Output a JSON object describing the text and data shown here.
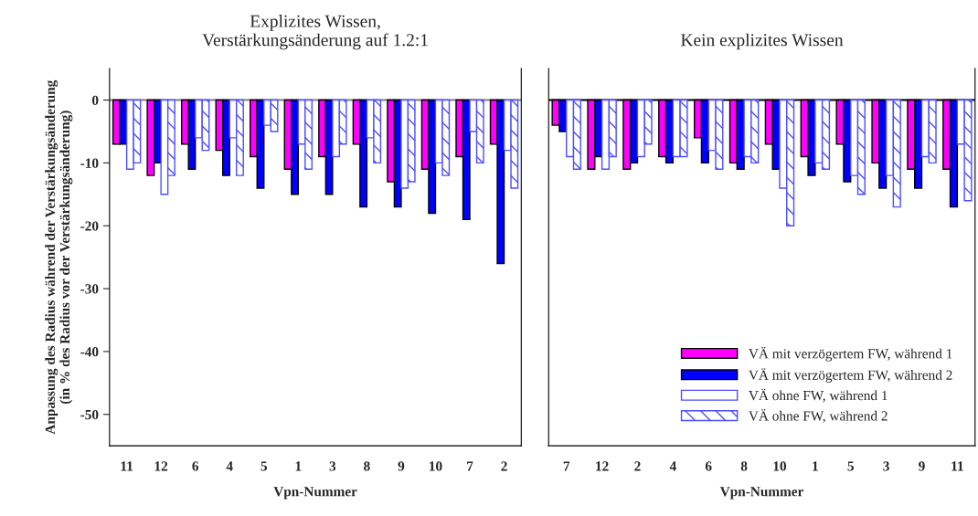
{
  "chart_data": [
    {
      "type": "bar",
      "title": "Explizites Wissen,\nVerstärkungsänderung auf 1.2:1",
      "xlabel": "Vpn-Nummer",
      "ylabel": "Anpassung des Radius während der Verstärkungsänderung\n(in % des Radius vor der Verstärkungsänderung)",
      "categories": [
        "11",
        "12",
        "6",
        "4",
        "5",
        "1",
        "3",
        "8",
        "9",
        "10",
        "7",
        "2"
      ],
      "ylim": [
        -55,
        5
      ],
      "yticks": [
        0,
        -10,
        -20,
        -30,
        -40,
        -50
      ],
      "ref_lines": [
        {
          "axis": "y",
          "value": 0,
          "color": "#808080"
        }
      ],
      "series": [
        {
          "color": "#ff00ff",
          "values": [
            -7,
            -12,
            -7,
            -8,
            -9,
            -11,
            -9,
            -7,
            -13,
            -11,
            -9,
            -7
          ]
        },
        {
          "color": "#0000ff",
          "values": [
            -7,
            -10,
            -11,
            -12,
            -14,
            -15,
            -15,
            -17,
            -17,
            -18,
            -19,
            -26
          ]
        },
        {
          "color": "#4d4dff",
          "values": [
            -11,
            -15,
            -6,
            -6,
            -4,
            -7,
            -9,
            -6,
            -14,
            -10,
            -5,
            -8
          ]
        },
        {
          "color": "#4d4dff",
          "values": [
            -10,
            -12,
            -8,
            -12,
            -5,
            -11,
            -7,
            -10,
            -13,
            -12,
            -10,
            -14
          ]
        }
      ]
    },
    {
      "type": "bar",
      "title": "Kein explizites Wissen",
      "xlabel": "Vpn-Nummer",
      "tick_labels": "x",
      "legend": "bottom right",
      "categories": [
        "7",
        "12",
        "2",
        "4",
        "6",
        "8",
        "10",
        "1",
        "5",
        "3",
        "9",
        "11"
      ],
      "ylim": [
        -55,
        5
      ],
      "ref_lines": [
        {
          "axis": "y",
          "value": 0,
          "color": "#000000"
        }
      ],
      "series": [
        {
          "name": "VÄ mit verzögertem FW, während 1",
          "color": "#ff00ff",
          "values": [
            -4,
            -11,
            -11,
            -9,
            -6,
            -10,
            -7,
            -9,
            -7,
            -10,
            -11,
            -11
          ]
        },
        {
          "name": "VÄ mit verzögertem FW, während 2",
          "color": "#0000ff",
          "values": [
            -5,
            -9,
            -10,
            -10,
            -10,
            -11,
            -11,
            -12,
            -13,
            -14,
            -14,
            -17
          ]
        },
        {
          "name": "VÄ ohne FW, während 1",
          "color": "#4d4dff",
          "values": [
            -9,
            -11,
            -9,
            -9,
            -8,
            -9,
            -14,
            -10,
            -12,
            -12,
            -9,
            -7
          ]
        },
        {
          "name": "VÄ ohne FW, während 2",
          "color": "#4d4dff",
          "values": [
            -11,
            -9,
            -7,
            -9,
            -11,
            -10,
            -20,
            -11,
            -15,
            -17,
            -10,
            -16
          ]
        }
      ]
    }
  ]
}
